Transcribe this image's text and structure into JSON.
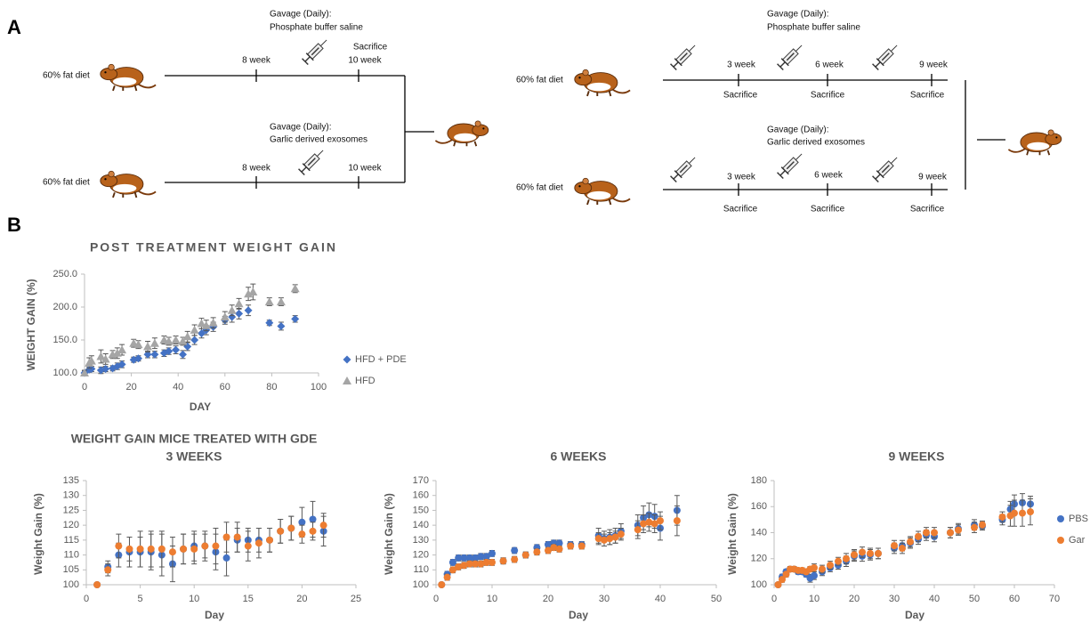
{
  "figure_labels": [
    "A",
    "B"
  ],
  "diagram": {
    "left": {
      "top": {
        "diet": "60% fat diet",
        "gavage": "Gavage (Daily):",
        "treatment": "Phosphate buffer saline",
        "timepoints": [
          "8 week",
          "10 week"
        ],
        "sacrifice": "Sacrifice"
      },
      "bottom": {
        "diet": "60% fat diet",
        "gavage": "Gavage (Daily):",
        "treatment": "Garlic derived exosomes",
        "timepoints": [
          "8 week",
          "10 week"
        ]
      }
    },
    "right": {
      "top": {
        "diet": "60% fat diet",
        "gavage": "Gavage (Daily):",
        "treatment": "Phosphate buffer saline",
        "timepoints": [
          "3 week",
          "6 week",
          "9 week"
        ],
        "sacrifice": [
          "Sacrifice",
          "Sacrifice",
          "Sacrifice"
        ]
      },
      "bottom": {
        "diet": "60% fat diet",
        "gavage": "Gavage (Daily):",
        "treatment": "Garlic derived exosomes",
        "timepoints": [
          "3 week",
          "6 week",
          "9 week"
        ],
        "sacrifice": [
          "Sacrifice",
          "Sacrifice",
          "Sacrifice"
        ]
      }
    }
  },
  "chart_data": [
    {
      "type": "scatter",
      "title": "POST TREATMENT WEIGHT GAIN",
      "x_label": "DAY",
      "y_label": "WEIGHT GAIN (%)",
      "xlim": [
        0,
        100
      ],
      "xticks": [
        0,
        20,
        40,
        60,
        80,
        100
      ],
      "ylim": [
        100,
        250
      ],
      "yticks": [
        {
          "value": 100,
          "label": "100.0"
        },
        {
          "value": 150,
          "label": "150.0"
        },
        {
          "value": 200,
          "label": "200.0"
        },
        {
          "value": 250,
          "label": "250.0"
        }
      ],
      "legend": "right",
      "series": [
        {
          "name": "HFD + PDE",
          "color": "#4472c4",
          "marker": "diamond",
          "x": [
            0,
            2,
            3,
            7,
            9,
            12,
            14,
            16,
            21,
            23,
            27,
            30,
            34,
            36,
            39,
            42,
            44,
            47,
            50,
            52,
            55,
            60,
            63,
            66,
            70,
            79,
            84,
            90
          ],
          "values": [
            100,
            105,
            106,
            104,
            106,
            107,
            110,
            113,
            120,
            122,
            128,
            128,
            130,
            133,
            135,
            128,
            140,
            150,
            160,
            165,
            170,
            180,
            185,
            190,
            195,
            176,
            171,
            182
          ],
          "errors": [
            3,
            4,
            4,
            5,
            4,
            4,
            5,
            5,
            4,
            4,
            5,
            5,
            5,
            5,
            6,
            6,
            6,
            7,
            7,
            7,
            7,
            6,
            8,
            8,
            8,
            4,
            6,
            5
          ]
        },
        {
          "name": "HFD",
          "color": "#a5a5a5",
          "marker": "triangle",
          "x": [
            0,
            2,
            3,
            7,
            9,
            12,
            14,
            16,
            21,
            23,
            27,
            30,
            34,
            36,
            39,
            42,
            44,
            47,
            50,
            52,
            55,
            60,
            63,
            66,
            70,
            72,
            79,
            84,
            90
          ],
          "values": [
            100,
            115,
            118,
            125,
            121,
            128,
            130,
            135,
            145,
            143,
            140,
            145,
            150,
            148,
            150,
            148,
            155,
            165,
            175,
            172,
            176,
            185,
            195,
            205,
            220,
            223,
            208,
            208,
            228
          ],
          "errors": [
            4,
            8,
            8,
            10,
            8,
            6,
            8,
            8,
            6,
            6,
            8,
            8,
            6,
            6,
            6,
            6,
            8,
            8,
            8,
            8,
            8,
            8,
            8,
            8,
            10,
            12,
            6,
            6,
            6
          ]
        }
      ]
    },
    {
      "type": "scatter",
      "suptitle": "WEIGHT GAIN MICE TREATED WITH GDE",
      "title": "3 WEEKS",
      "x_label": "Day",
      "y_label": "Weight Gain (%)",
      "xlim": [
        0,
        25
      ],
      "xticks": [
        0,
        5,
        10,
        15,
        20,
        25
      ],
      "ylim": [
        100,
        135
      ],
      "yticks": [
        100,
        105,
        110,
        115,
        120,
        125,
        130,
        135
      ],
      "x": [
        1,
        2,
        3,
        4,
        5,
        6,
        7,
        8,
        9,
        10,
        11,
        12,
        13,
        14,
        15,
        16,
        17,
        18,
        19,
        20,
        21,
        22
      ],
      "series": [
        {
          "name": "PBS",
          "color": "#4472c4",
          "marker": "circle",
          "values": [
            100,
            106,
            110,
            111,
            111,
            111,
            110,
            107,
            112,
            113,
            113,
            111,
            109,
            115,
            115,
            115,
            115,
            118,
            119,
            121,
            122,
            118
          ],
          "errors": [
            0,
            2,
            4,
            5,
            5,
            6,
            7,
            6,
            5,
            5,
            5,
            6,
            6,
            4,
            4,
            4,
            4,
            4,
            4,
            5,
            6,
            5
          ]
        },
        {
          "name": "Gar",
          "color": "#ed7d31",
          "marker": "circle",
          "values": [
            100,
            105,
            113,
            112,
            112,
            112,
            112,
            111,
            112,
            112,
            113,
            113,
            116,
            116,
            113,
            114,
            115,
            118,
            119,
            117,
            118,
            120
          ],
          "errors": [
            0,
            2,
            4,
            4,
            6,
            6,
            6,
            5,
            5,
            5,
            4,
            6,
            5,
            5,
            5,
            5,
            4,
            4,
            4,
            3,
            3,
            4
          ]
        }
      ]
    },
    {
      "type": "scatter",
      "title": "6 WEEKS",
      "x_label": "Day",
      "y_label": "Weight Gain (%)",
      "xlim": [
        0,
        50
      ],
      "xticks": [
        0,
        10,
        20,
        30,
        40,
        50
      ],
      "ylim": [
        100,
        170
      ],
      "yticks": [
        100,
        110,
        120,
        130,
        140,
        150,
        160,
        170
      ],
      "x": [
        1,
        2,
        3,
        4,
        5,
        6,
        7,
        8,
        9,
        10,
        12,
        14,
        16,
        18,
        20,
        21,
        22,
        24,
        26,
        29,
        30,
        31,
        32,
        33,
        36,
        37,
        38,
        39,
        40,
        43
      ],
      "series": [
        {
          "name": "PBS",
          "color": "#4472c4",
          "marker": "circle",
          "values": [
            100,
            107,
            115,
            118,
            118,
            118,
            118,
            119,
            119,
            121,
            116,
            123,
            120,
            125,
            127,
            128,
            128,
            127,
            127,
            133,
            131,
            132,
            133,
            136,
            140,
            145,
            147,
            146,
            138,
            150
          ],
          "errors": [
            1,
            2,
            2,
            2,
            2,
            2,
            2,
            2,
            2,
            2,
            2,
            2,
            2,
            2,
            2,
            2,
            2,
            2,
            2,
            5,
            5,
            5,
            5,
            5,
            7,
            8,
            8,
            8,
            8,
            10
          ]
        },
        {
          "name": "Gar",
          "color": "#ed7d31",
          "marker": "circle",
          "values": [
            100,
            105,
            110,
            112,
            113,
            114,
            114,
            114,
            115,
            115,
            116,
            117,
            120,
            122,
            123,
            125,
            124,
            126,
            126,
            131,
            130,
            131,
            132,
            134,
            137,
            141,
            142,
            141,
            143,
            143
          ],
          "errors": [
            1,
            2,
            2,
            2,
            2,
            2,
            2,
            2,
            2,
            2,
            2,
            2,
            2,
            2,
            2,
            2,
            2,
            2,
            2,
            4,
            4,
            4,
            4,
            4,
            6,
            6,
            6,
            6,
            6,
            10
          ]
        }
      ]
    },
    {
      "type": "scatter",
      "title": "9 WEEKS",
      "x_label": "Day",
      "y_label": "Weight Gain (%)",
      "xlim": [
        0,
        70
      ],
      "xticks": [
        0,
        10,
        20,
        30,
        40,
        50,
        60,
        70
      ],
      "ylim": [
        100,
        180
      ],
      "yticks": [
        100,
        120,
        140,
        160,
        180
      ],
      "legend": "right",
      "x": [
        1,
        2,
        3,
        4,
        5,
        6,
        7,
        8,
        9,
        10,
        12,
        14,
        16,
        18,
        20,
        22,
        24,
        26,
        30,
        32,
        34,
        36,
        38,
        40,
        44,
        46,
        50,
        52,
        57,
        59,
        60,
        62,
        64
      ],
      "series": [
        {
          "name": "PBS",
          "color": "#4472c4",
          "marker": "circle",
          "values": [
            100,
            106,
            110,
            112,
            112,
            110,
            110,
            108,
            105,
            107,
            110,
            113,
            115,
            118,
            122,
            122,
            123,
            124,
            128,
            130,
            132,
            135,
            138,
            137,
            140,
            143,
            146,
            145,
            150,
            158,
            162,
            163,
            162
          ],
          "errors": [
            1,
            2,
            2,
            2,
            2,
            2,
            2,
            2,
            3,
            3,
            3,
            3,
            3,
            4,
            4,
            4,
            4,
            4,
            4,
            4,
            4,
            4,
            4,
            4,
            4,
            4,
            4,
            3,
            4,
            6,
            7,
            7,
            6
          ]
        },
        {
          "name": "Gar",
          "color": "#ed7d31",
          "marker": "circle",
          "values": [
            100,
            104,
            108,
            112,
            112,
            111,
            111,
            110,
            112,
            113,
            112,
            115,
            118,
            120,
            123,
            125,
            124,
            124,
            130,
            128,
            133,
            137,
            140,
            140,
            140,
            142,
            144,
            146,
            152,
            153,
            155,
            155,
            156
          ],
          "errors": [
            1,
            2,
            2,
            2,
            2,
            2,
            2,
            2,
            2,
            3,
            3,
            3,
            3,
            4,
            4,
            4,
            4,
            4,
            4,
            4,
            4,
            4,
            4,
            4,
            4,
            4,
            4,
            3,
            4,
            8,
            10,
            10,
            10
          ]
        }
      ]
    }
  ]
}
